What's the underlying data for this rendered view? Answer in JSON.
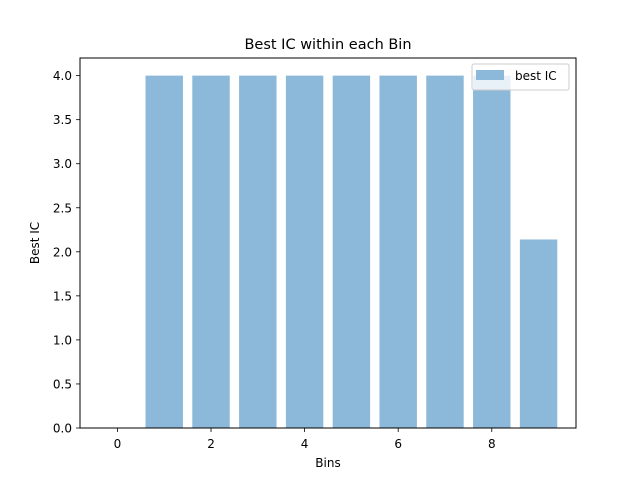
{
  "chart_data": {
    "type": "bar",
    "title": "Best IC within each Bin",
    "xlabel": "Bins",
    "ylabel": "Best IC",
    "x": [
      0,
      1,
      2,
      3,
      4,
      5,
      6,
      7,
      8,
      9
    ],
    "series": [
      {
        "name": "best IC",
        "values": [
          0,
          4.0,
          4.0,
          4.0,
          4.0,
          4.0,
          4.0,
          4.0,
          4.0,
          2.14
        ]
      }
    ],
    "xlim": [
      -0.8,
      9.8
    ],
    "ylim": [
      0,
      4.2
    ],
    "xticks": [
      0,
      2,
      4,
      6,
      8
    ],
    "xtick_labels": [
      "0",
      "2",
      "4",
      "6",
      "8"
    ],
    "yticks": [
      0,
      0.5,
      1.0,
      1.5,
      2.0,
      2.5,
      3.0,
      3.5,
      4.0
    ],
    "ytick_labels": [
      "0.0",
      "0.5",
      "1.0",
      "1.5",
      "2.0",
      "2.5",
      "3.0",
      "3.5",
      "4.0"
    ],
    "grid": false,
    "legend": "top-right",
    "bar_color": "#8cb8d9"
  }
}
